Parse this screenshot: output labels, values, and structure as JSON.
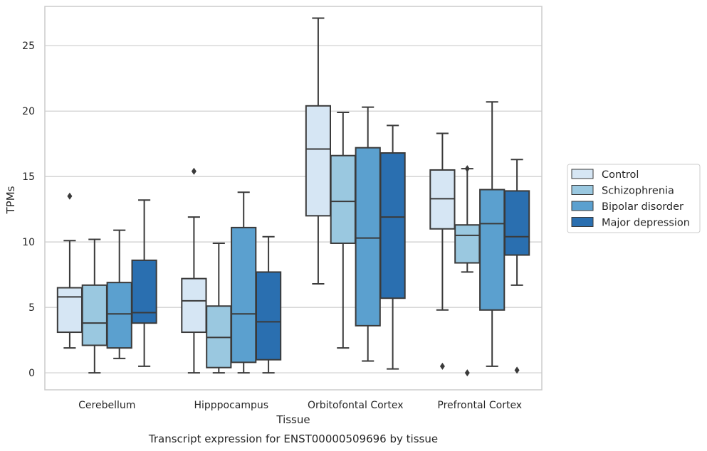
{
  "chart_data": {
    "type": "box",
    "xlabel": "Tissue",
    "ylabel": "TPMs",
    "caption": "Transcript expression for ENST00000509696 by tissue",
    "ylim": [
      -1.3,
      28.0
    ],
    "yticks": [
      0,
      5,
      10,
      15,
      20,
      25
    ],
    "grid": true,
    "legend_position": "right",
    "categories": [
      "Cerebellum",
      "Hipppocampus",
      "Orbitofontal Cortex",
      "Prefrontal Cortex"
    ],
    "series": [
      {
        "name": "Control",
        "color": "#d6e6f4",
        "boxes": [
          {
            "whislo": 1.9,
            "q1": 3.1,
            "med": 5.8,
            "q3": 6.5,
            "whishi": 10.1,
            "fliers": [
              13.5
            ]
          },
          {
            "whislo": 0.0,
            "q1": 3.1,
            "med": 5.5,
            "q3": 7.2,
            "whishi": 11.9,
            "fliers": [
              15.4
            ]
          },
          {
            "whislo": 6.8,
            "q1": 12.0,
            "med": 17.1,
            "q3": 20.4,
            "whishi": 27.1,
            "fliers": []
          },
          {
            "whislo": 4.8,
            "q1": 11.0,
            "med": 13.3,
            "q3": 15.5,
            "whishi": 18.3,
            "fliers": [
              0.5
            ]
          }
        ]
      },
      {
        "name": "Schizophrenia",
        "color": "#9ac8e0",
        "boxes": [
          {
            "whislo": 0.0,
            "q1": 2.1,
            "med": 3.8,
            "q3": 6.7,
            "whishi": 10.2,
            "fliers": []
          },
          {
            "whislo": 0.0,
            "q1": 0.4,
            "med": 2.7,
            "q3": 5.1,
            "whishi": 9.9,
            "fliers": []
          },
          {
            "whislo": 1.9,
            "q1": 9.9,
            "med": 13.1,
            "q3": 16.6,
            "whishi": 19.9,
            "fliers": []
          },
          {
            "whislo": 7.7,
            "q1": 8.4,
            "med": 10.5,
            "q3": 11.3,
            "whishi": 15.6,
            "fliers": [
              15.6,
              0.0
            ]
          }
        ]
      },
      {
        "name": "Bipolar disorder",
        "color": "#5ba0cf",
        "boxes": [
          {
            "whislo": 1.1,
            "q1": 1.9,
            "med": 4.5,
            "q3": 6.9,
            "whishi": 10.9,
            "fliers": []
          },
          {
            "whislo": 0.0,
            "q1": 0.8,
            "med": 4.5,
            "q3": 11.1,
            "whishi": 13.8,
            "fliers": []
          },
          {
            "whislo": 0.9,
            "q1": 3.6,
            "med": 10.3,
            "q3": 17.2,
            "whishi": 20.3,
            "fliers": []
          },
          {
            "whislo": 0.5,
            "q1": 4.8,
            "med": 11.4,
            "q3": 14.0,
            "whishi": 20.7,
            "fliers": []
          }
        ]
      },
      {
        "name": "Major depression",
        "color": "#2a6fb0",
        "boxes": [
          {
            "whislo": 0.5,
            "q1": 3.8,
            "med": 4.6,
            "q3": 8.6,
            "whishi": 13.2,
            "fliers": []
          },
          {
            "whislo": 0.0,
            "q1": 1.0,
            "med": 3.9,
            "q3": 7.7,
            "whishi": 10.4,
            "fliers": []
          },
          {
            "whislo": 0.3,
            "q1": 5.7,
            "med": 11.9,
            "q3": 16.8,
            "whishi": 18.9,
            "fliers": []
          },
          {
            "whislo": 6.7,
            "q1": 9.0,
            "med": 10.4,
            "q3": 13.9,
            "whishi": 16.3,
            "fliers": [
              0.2
            ]
          }
        ]
      }
    ]
  }
}
